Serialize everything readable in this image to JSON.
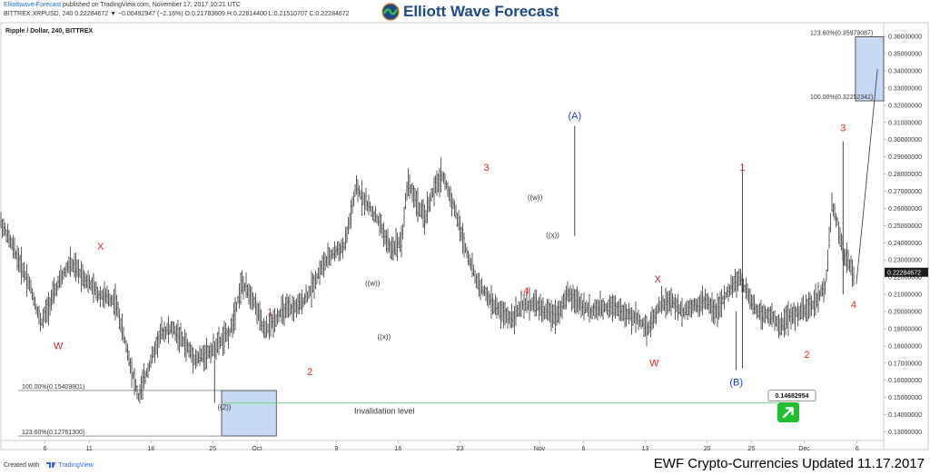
{
  "header": {
    "publisher_link": "Elliottwave-Forecast",
    "published_text": "published on TradingView.com, November 17, 2017 10:21 UTC",
    "ohlc_line": "BITTREX:XRPUSD, 240  0.22284672  ▼ −0.00492947 (−2.16%)  O:0.21783609  H:0.22814400  L:0.21510707  C:0.22284672",
    "logo_text": "Elliott Wave Forecast"
  },
  "footer": {
    "created_with": "Created with",
    "tradingview": "TradingView",
    "update_note": "EWF Crypto-Currencies Updated 11.17.2017"
  },
  "colors": {
    "candle": "#1a1a1a",
    "wave_red": "#e32222",
    "wave_blue": "#1f3fbf",
    "zone_fill": "#c5d9f3",
    "invalidation_line": "#7cd67c",
    "price_tag_bg": "#1a1a1a",
    "arrow_button": "#1fbf2f"
  },
  "icons": {
    "logo": "ewf-logo-icon",
    "arrow": "up-right-arrow-icon",
    "tradingview": "tradingview-icon"
  },
  "chart_data": {
    "type": "candlestick",
    "title": "Ripple / Dollar, 240, BITTREX",
    "xlabel": "",
    "ylabel": "",
    "ylim": [
      0.125,
      0.368
    ],
    "grid": false,
    "x_ticks": [
      "6",
      "11",
      "18",
      "25",
      "Oct",
      "9",
      "16",
      "23",
      "Nov",
      "6",
      "13",
      "20",
      "25",
      "Dec",
      "6"
    ],
    "y_ticks": [
      "0.13000000",
      "0.14000000",
      "0.15000000",
      "0.16000000",
      "0.17000000",
      "0.18000000",
      "0.19000000",
      "0.20000000",
      "0.21000000",
      "0.22000000",
      "0.23000000",
      "0.24000000",
      "0.25000000",
      "0.26000000",
      "0.27000000",
      "0.28000000",
      "0.29000000",
      "0.30000000",
      "0.31000000",
      "0.32000000",
      "0.33000000",
      "0.34000000",
      "0.35000000",
      "0.36000000"
    ],
    "y_tick_values": [
      0.13,
      0.14,
      0.15,
      0.16,
      0.17,
      0.18,
      0.19,
      0.2,
      0.21,
      0.22,
      0.23,
      0.24,
      0.25,
      0.26,
      0.27,
      0.28,
      0.29,
      0.3,
      0.31,
      0.32,
      0.33,
      0.34,
      0.35,
      0.36
    ],
    "x_tick_days": [
      6,
      11,
      18,
      25,
      30,
      39,
      46,
      53,
      62,
      67,
      74,
      81,
      86,
      92,
      98
    ],
    "day_range": [
      1,
      101
    ],
    "last_price": "0.22284672",
    "last_value": 0.22284672,
    "price_path": [
      [
        1,
        0.252
      ],
      [
        3,
        0.238
      ],
      [
        6,
        0.216
      ],
      [
        8,
        0.193
      ],
      [
        11,
        0.216
      ],
      [
        13,
        0.228
      ],
      [
        15,
        0.222
      ],
      [
        18,
        0.21
      ],
      [
        21,
        0.206
      ],
      [
        23,
        0.178
      ],
      [
        25,
        0.15
      ],
      [
        27,
        0.17
      ],
      [
        29,
        0.188
      ],
      [
        31,
        0.19
      ],
      [
        33,
        0.182
      ],
      [
        35,
        0.172
      ],
      [
        38,
        0.178
      ],
      [
        41,
        0.188
      ],
      [
        43,
        0.216
      ],
      [
        45,
        0.208
      ],
      [
        47,
        0.188
      ],
      [
        50,
        0.2
      ],
      [
        53,
        0.203
      ],
      [
        55,
        0.212
      ],
      [
        57,
        0.226
      ],
      [
        59,
        0.234
      ],
      [
        61,
        0.238
      ],
      [
        63,
        0.272
      ],
      [
        65,
        0.262
      ],
      [
        67,
        0.252
      ],
      [
        69,
        0.236
      ],
      [
        71,
        0.242
      ],
      [
        72,
        0.276
      ],
      [
        74,
        0.26
      ],
      [
        75,
        0.254
      ],
      [
        76,
        0.266
      ],
      [
        78,
        0.28
      ],
      [
        80,
        0.262
      ],
      [
        82,
        0.238
      ],
      [
        84,
        0.218
      ],
      [
        86,
        0.208
      ],
      [
        88,
        0.2
      ],
      [
        90,
        0.196
      ],
      [
        92,
        0.203
      ],
      [
        94,
        0.205
      ],
      [
        96,
        0.2
      ],
      [
        98,
        0.198
      ],
      [
        100,
        0.21
      ],
      [
        102,
        0.205
      ],
      [
        104,
        0.2
      ],
      [
        106,
        0.202
      ],
      [
        108,
        0.204
      ],
      [
        110,
        0.198
      ],
      [
        112,
        0.196
      ],
      [
        114,
        0.19
      ],
      [
        116,
        0.204
      ],
      [
        118,
        0.206
      ],
      [
        120,
        0.2
      ],
      [
        122,
        0.204
      ],
      [
        124,
        0.206
      ],
      [
        126,
        0.2
      ],
      [
        128,
        0.212
      ],
      [
        130,
        0.22
      ],
      [
        131,
        0.212
      ],
      [
        133,
        0.2
      ],
      [
        135,
        0.198
      ],
      [
        137,
        0.192
      ],
      [
        139,
        0.198
      ],
      [
        141,
        0.2
      ],
      [
        143,
        0.205
      ],
      [
        145,
        0.215
      ],
      [
        146,
        0.262
      ],
      [
        147,
        0.252
      ],
      [
        148,
        0.234
      ],
      [
        149,
        0.228
      ],
      [
        150,
        0.22
      ]
    ],
    "annotations": [
      {
        "label": "W",
        "color": "red",
        "x": 7.5,
        "y": 0.178
      },
      {
        "label": "X",
        "color": "red",
        "x": 12.3,
        "y": 0.236
      },
      {
        "label": "((2))",
        "color": "dark",
        "x": 26.3,
        "y": 0.143
      },
      {
        "label": "1",
        "color": "red",
        "x": 31.5,
        "y": 0.198
      },
      {
        "label": "2",
        "color": "red",
        "x": 36.0,
        "y": 0.163
      },
      {
        "label": "((w))",
        "color": "dark",
        "x": 43.1,
        "y": 0.215
      },
      {
        "label": "((x))",
        "color": "dark",
        "x": 44.4,
        "y": 0.184
      },
      {
        "label": "3",
        "color": "red",
        "x": 56.0,
        "y": 0.282
      },
      {
        "label": "4",
        "color": "red",
        "x": 60.5,
        "y": 0.21
      },
      {
        "label": "((w))",
        "color": "dark",
        "x": 61.5,
        "y": 0.265
      },
      {
        "label": "((x))",
        "color": "dark",
        "x": 63.5,
        "y": 0.243
      },
      {
        "label": "(A)",
        "color": "blue",
        "x": 66.0,
        "y": 0.312
      },
      {
        "label": "X",
        "color": "red",
        "x": 75.4,
        "y": 0.217
      },
      {
        "label": "W",
        "color": "red",
        "x": 75.0,
        "y": 0.168
      },
      {
        "label": "1",
        "color": "red",
        "x": 85.0,
        "y": 0.282
      },
      {
        "label": "(B)",
        "color": "blue",
        "x": 84.3,
        "y": 0.157
      },
      {
        "label": "2",
        "color": "red",
        "x": 92.3,
        "y": 0.173
      },
      {
        "label": "3",
        "color": "red",
        "x": 96.4,
        "y": 0.305
      },
      {
        "label": "4",
        "color": "red",
        "x": 97.6,
        "y": 0.202
      }
    ],
    "fib_zones": [
      {
        "name": "upper",
        "label_top": "123.60%(0.35979087)",
        "label_bottom": "100.00%(0.32252342)",
        "top": 0.35979087,
        "bottom": 0.32252342,
        "x_start": 97.8,
        "x_end": 101.0
      },
      {
        "name": "lower",
        "label_top": "100.00%(0.15409801)",
        "label_bottom": "123.60%(0.12761300)",
        "top": 0.15409801,
        "bottom": 0.127613,
        "x_start": 26.0,
        "x_end": 32.2
      }
    ],
    "invalidation": {
      "label": "Invalidation level",
      "value_label": "0.14682954",
      "value": 0.14682954,
      "x_start": 26.3,
      "x_end": 98.5
    },
    "projection": [
      [
        97.9,
        0.216
      ],
      [
        100.3,
        0.341
      ]
    ]
  }
}
